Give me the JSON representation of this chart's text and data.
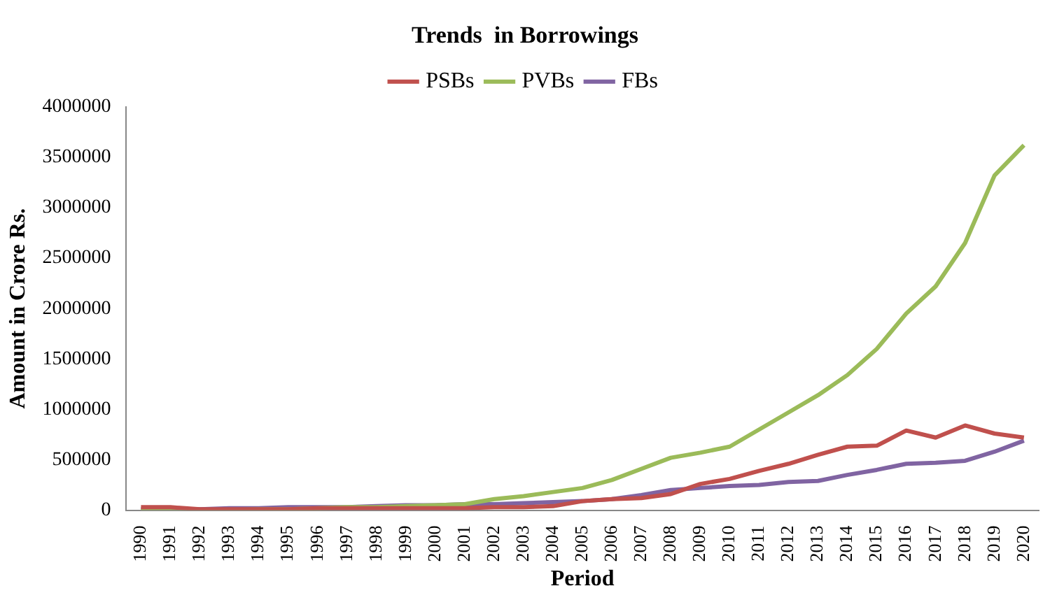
{
  "chart_data": {
    "type": "line",
    "title": "Trends  in Borrowings",
    "xlabel": "Period",
    "ylabel": "Amount in Crore Rs.",
    "categories": [
      "1990",
      "1991",
      "1992",
      "1993",
      "1994",
      "1995",
      "1996",
      "1997",
      "1998",
      "1999",
      "2000",
      "2001",
      "2002",
      "2003",
      "2004",
      "2005",
      "2006",
      "2007",
      "2008",
      "2009",
      "2010",
      "2011",
      "2012",
      "2013",
      "2014",
      "2015",
      "2016",
      "2017",
      "2018",
      "2019",
      "2020"
    ],
    "ylim": [
      0,
      4000000
    ],
    "yticks": [
      0,
      500000,
      1000000,
      1500000,
      2000000,
      2500000,
      3000000,
      3500000,
      4000000
    ],
    "grid": false,
    "legend": "top",
    "marker": "none",
    "line_style": "solid",
    "series": [
      {
        "name": "PSBs",
        "color": "#c0504d",
        "values": [
          30000,
          30000,
          10000,
          10000,
          10000,
          10000,
          20000,
          20000,
          20000,
          20000,
          20000,
          20000,
          30000,
          30000,
          40000,
          90000,
          110000,
          120000,
          160000,
          260000,
          310000,
          390000,
          460000,
          550000,
          630000,
          640000,
          790000,
          720000,
          840000,
          760000,
          720000
        ]
      },
      {
        "name": "PVBs",
        "color": "#9bbb59",
        "values": [
          0,
          0,
          0,
          0,
          10000,
          10000,
          20000,
          30000,
          30000,
          40000,
          50000,
          60000,
          110000,
          140000,
          180000,
          220000,
          300000,
          410000,
          520000,
          570000,
          630000,
          800000,
          970000,
          1140000,
          1340000,
          1600000,
          1950000,
          2220000,
          2650000,
          3320000,
          3620000
        ]
      },
      {
        "name": "FBs",
        "color": "#8064a2",
        "values": [
          10000,
          10000,
          10000,
          20000,
          20000,
          30000,
          30000,
          30000,
          40000,
          50000,
          50000,
          60000,
          60000,
          70000,
          80000,
          90000,
          110000,
          150000,
          200000,
          220000,
          240000,
          250000,
          280000,
          290000,
          350000,
          400000,
          460000,
          470000,
          490000,
          580000,
          690000
        ]
      }
    ]
  }
}
